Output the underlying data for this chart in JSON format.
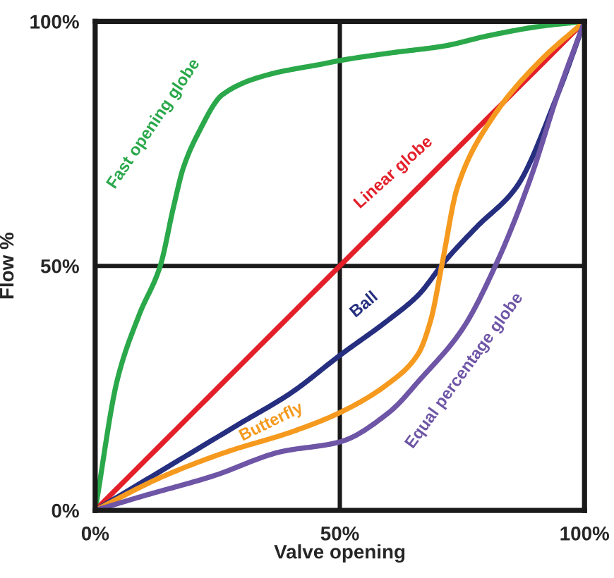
{
  "chart_data": {
    "type": "line",
    "xlabel": "Valve opening",
    "ylabel": "Flow %",
    "xlim": [
      0,
      100
    ],
    "ylim": [
      0,
      100
    ],
    "xticks": [
      {
        "value": 0,
        "label": "0%"
      },
      {
        "value": 50,
        "label": "50%"
      },
      {
        "value": 100,
        "label": "100%"
      }
    ],
    "yticks": [
      {
        "value": 0,
        "label": "0%"
      },
      {
        "value": 50,
        "label": "50%"
      },
      {
        "value": 100,
        "label": "100%"
      }
    ],
    "grid": true,
    "legend": false,
    "marker": "none",
    "line_style": "solid",
    "series": [
      {
        "name": "Fast opening globe",
        "color": "#2aa84a",
        "x": [
          0,
          4.6,
          9,
          13.3,
          16,
          18,
          21,
          26,
          35,
          47,
          50,
          60,
          71.5,
          80,
          91,
          100
        ],
        "values": [
          0,
          27,
          40,
          50,
          62,
          70,
          77,
          85,
          89,
          91.4,
          92,
          93.5,
          95,
          97,
          99,
          100
        ]
      },
      {
        "name": "Linear globe",
        "color": "#e3202a",
        "x": [
          0,
          50,
          100
        ],
        "values": [
          0,
          50,
          100
        ]
      },
      {
        "name": "Ball",
        "color": "#262f7f",
        "x": [
          0,
          10,
          20,
          30,
          40,
          50,
          60,
          66,
          71.5,
          78,
          86,
          94.5,
          100
        ],
        "values": [
          0,
          6,
          12,
          18,
          24,
          31.7,
          39,
          44,
          51,
          58,
          66,
          85,
          100
        ]
      },
      {
        "name": "Butterfly",
        "color": "#f59a1e",
        "x": [
          0,
          14,
          27,
          40,
          50,
          60,
          66,
          68.6,
          71,
          74,
          81,
          91,
          100
        ],
        "values": [
          0,
          7,
          12,
          16,
          20,
          26,
          32,
          39,
          51,
          66,
          80,
          92,
          100
        ]
      },
      {
        "name": "Equal percentage globe",
        "color": "#6e55a6",
        "x": [
          0,
          10,
          24,
          38,
          50,
          60,
          66.6,
          75,
          82,
          89,
          94.5,
          100
        ],
        "values": [
          0,
          3,
          7,
          12,
          14,
          20,
          27,
          37,
          50.5,
          68,
          85,
          100
        ]
      }
    ]
  }
}
